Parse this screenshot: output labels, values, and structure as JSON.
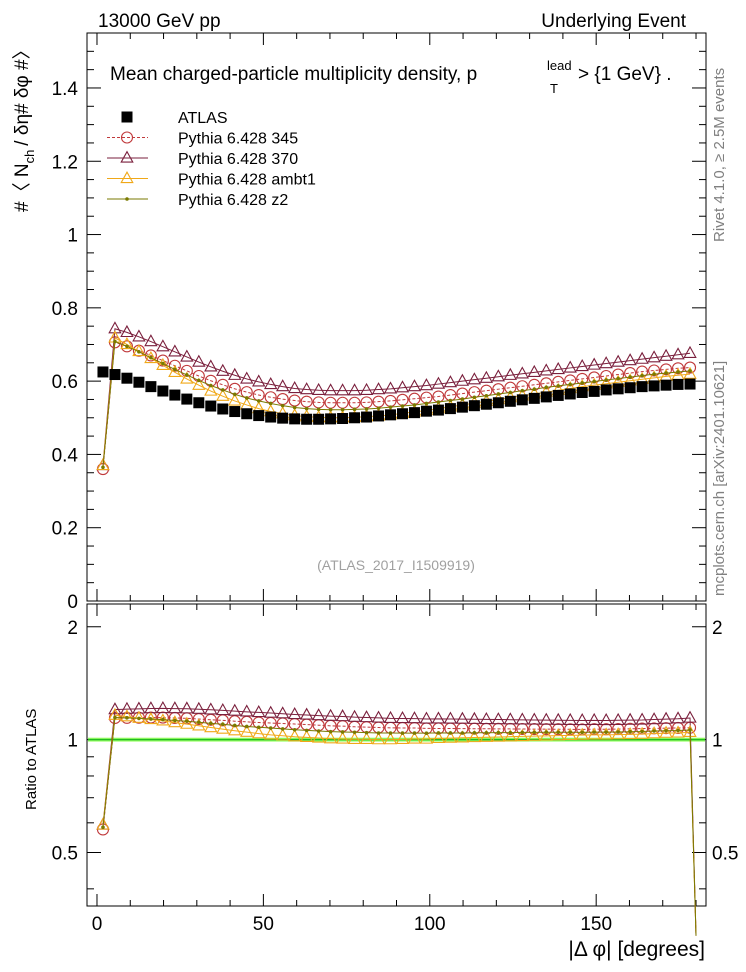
{
  "header": {
    "left": "13000 GeV pp",
    "right": "Underlying Event",
    "side_top": "Rivet 4.1.0, ≥ 2.5M events",
    "side_bottom": "mcplots.cern.ch [arXiv:2401.10621]",
    "analysis": "(ATLAS_2017_I1509919)"
  },
  "plot_title": {
    "main": "Mean charged-particle multiplicity density, p",
    "sup": "lead",
    "sub": "T",
    "tail": "> {1 GeV} ."
  },
  "labels": {
    "ylabel_top": "#〈 N",
    "ylabel_sub": "ch",
    "ylabel_rest": "/ δη# δφ #〉",
    "ylabel_bottom": "Ratio to ATLAS",
    "xlabel": "|Δ φ| [degrees]"
  },
  "colors": {
    "atlas": "#000000",
    "p345": "#c0393b",
    "p370": "#7a1f3c",
    "ambt1": "#f0a818",
    "z2": "#7a7a00",
    "ref_band": "#99ff66",
    "ref_line": "#22bb22"
  },
  "chart_data": {
    "type": "scatter",
    "xlabel": "|Δ φ| [degrees]",
    "xlim": [
      -3,
      183
    ],
    "xticks": [
      "0",
      "50",
      "100",
      "150"
    ],
    "main": {
      "ylabel": "#〈 N_ch / δη# δφ #〉",
      "ylim": [
        0,
        1.55
      ],
      "yticks": [
        "0",
        "0.2",
        "0.4",
        "0.6",
        "0.8",
        "1",
        "1.2",
        "1.4"
      ]
    },
    "ratio": {
      "ylabel": "Ratio to ATLAS",
      "ylim": [
        0.36,
        2.3
      ],
      "yticks": [
        "0.5",
        "1",
        "2"
      ]
    },
    "x": [
      1.8,
      5.4,
      9.0,
      12.6,
      16.2,
      19.8,
      23.4,
      27.0,
      30.6,
      34.2,
      37.8,
      41.4,
      45.0,
      48.6,
      52.2,
      55.8,
      59.4,
      63.0,
      66.6,
      70.2,
      73.8,
      77.4,
      81.0,
      84.6,
      88.2,
      91.8,
      95.4,
      99.0,
      102.6,
      106.2,
      109.8,
      113.4,
      117.0,
      120.6,
      124.2,
      127.8,
      131.4,
      135.0,
      138.6,
      142.2,
      145.8,
      149.4,
      153.0,
      156.6,
      160.2,
      163.8,
      167.4,
      171.0,
      174.6,
      178.2
    ],
    "series": [
      {
        "name": "ATLAS",
        "marker": "square",
        "values": [
          0.625,
          0.618,
          0.608,
          0.597,
          0.585,
          0.573,
          0.562,
          0.551,
          0.541,
          0.532,
          0.524,
          0.517,
          0.511,
          0.506,
          0.502,
          0.499,
          0.497,
          0.496,
          0.496,
          0.497,
          0.498,
          0.5,
          0.502,
          0.505,
          0.508,
          0.511,
          0.514,
          0.518,
          0.521,
          0.525,
          0.529,
          0.533,
          0.537,
          0.541,
          0.545,
          0.549,
          0.553,
          0.557,
          0.561,
          0.565,
          0.569,
          0.572,
          0.576,
          0.579,
          0.582,
          0.585,
          0.587,
          0.589,
          0.591,
          0.592
        ]
      },
      {
        "name": "Pythia 6.428 345",
        "marker": "circle",
        "values": [
          0.36,
          0.706,
          0.695,
          0.683,
          0.67,
          0.656,
          0.642,
          0.628,
          0.614,
          0.601,
          0.59,
          0.579,
          0.57,
          0.562,
          0.556,
          0.551,
          0.547,
          0.544,
          0.542,
          0.541,
          0.541,
          0.541,
          0.542,
          0.544,
          0.546,
          0.549,
          0.552,
          0.555,
          0.558,
          0.562,
          0.566,
          0.57,
          0.574,
          0.578,
          0.582,
          0.586,
          0.59,
          0.594,
          0.598,
          0.602,
          0.606,
          0.61,
          0.614,
          0.618,
          0.622,
          0.626,
          0.629,
          0.632,
          0.635,
          0.637
        ]
      },
      {
        "name": "Pythia 6.428 370",
        "marker": "triangle",
        "values": [
          0.37,
          0.743,
          0.733,
          0.721,
          0.708,
          0.694,
          0.68,
          0.666,
          0.652,
          0.639,
          0.627,
          0.616,
          0.606,
          0.598,
          0.591,
          0.585,
          0.58,
          0.577,
          0.575,
          0.574,
          0.574,
          0.574,
          0.575,
          0.577,
          0.579,
          0.582,
          0.585,
          0.588,
          0.592,
          0.596,
          0.6,
          0.604,
          0.608,
          0.612,
          0.616,
          0.62,
          0.624,
          0.628,
          0.632,
          0.636,
          0.64,
          0.644,
          0.648,
          0.652,
          0.656,
          0.66,
          0.664,
          0.668,
          0.672,
          0.676
        ]
      },
      {
        "name": "Pythia 6.428 ambt1",
        "marker": "triangle-open",
        "values": [
          0.37,
          0.718,
          0.7,
          0.681,
          0.662,
          0.643,
          0.624,
          0.606,
          0.589,
          0.573,
          0.559,
          0.546,
          0.535,
          0.525,
          0.517,
          0.511,
          0.506,
          0.503,
          0.501,
          0.5,
          0.5,
          0.501,
          0.503,
          0.505,
          0.508,
          0.512,
          0.516,
          0.52,
          0.525,
          0.53,
          0.535,
          0.54,
          0.545,
          0.55,
          0.555,
          0.56,
          0.565,
          0.57,
          0.575,
          0.58,
          0.585,
          0.589,
          0.593,
          0.597,
          0.601,
          0.605,
          0.609,
          0.613,
          0.616,
          0.619
        ]
      },
      {
        "name": "Pythia 6.428 z2",
        "marker": "dot",
        "values": [
          0.365,
          0.708,
          0.695,
          0.68,
          0.664,
          0.648,
          0.632,
          0.617,
          0.602,
          0.588,
          0.576,
          0.564,
          0.554,
          0.546,
          0.539,
          0.533,
          0.528,
          0.525,
          0.523,
          0.522,
          0.522,
          0.523,
          0.524,
          0.526,
          0.529,
          0.532,
          0.535,
          0.539,
          0.543,
          0.547,
          0.551,
          0.556,
          0.56,
          0.565,
          0.569,
          0.574,
          0.578,
          0.583,
          0.587,
          0.591,
          0.595,
          0.599,
          0.603,
          0.607,
          0.611,
          0.615,
          0.619,
          0.622,
          0.625,
          0.628
        ]
      }
    ],
    "ratio_end": {
      "x": 180.0,
      "value": 0.3
    },
    "legend": [
      "ATLAS",
      "Pythia 6.428 345",
      "Pythia 6.428 370",
      "Pythia 6.428 ambt1",
      "Pythia 6.428 z2"
    ],
    "legend_position": "top-left"
  }
}
